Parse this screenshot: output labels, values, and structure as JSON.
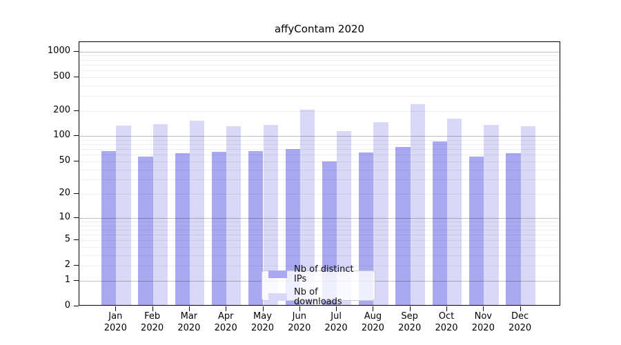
{
  "chart_data": {
    "type": "bar",
    "title": "affyContam 2020",
    "categories": [
      "Jan",
      "Feb",
      "Mar",
      "Apr",
      "May",
      "Jun",
      "Jul",
      "Aug",
      "Sep",
      "Oct",
      "Nov",
      "Dec"
    ],
    "x_year": "2020",
    "series": [
      {
        "name": "Nb of distinct IPs",
        "color": "#a9a9f1",
        "values": [
          64,
          55,
          60,
          63,
          64,
          68,
          48,
          61,
          71,
          83,
          55,
          60
        ]
      },
      {
        "name": "Nb of downloads",
        "color": "#d9d9f7",
        "values": [
          129,
          133,
          147,
          127,
          132,
          199,
          111,
          142,
          231,
          155,
          130,
          127
        ]
      }
    ],
    "yticks": [
      0,
      1,
      2,
      5,
      10,
      20,
      50,
      100,
      200,
      500,
      1000
    ],
    "y_scale": "log10(v+1)",
    "ylim": [
      0,
      1291
    ],
    "grid": true,
    "legend_position": "lower center",
    "colors": {
      "bar_dark": "#a9a9f1",
      "bar_light": "#d9d9f7",
      "major_grid": "#bfbfbf",
      "minor_grid": "#ededed",
      "spine": "#000000",
      "legend_border": "#cccccc"
    }
  }
}
